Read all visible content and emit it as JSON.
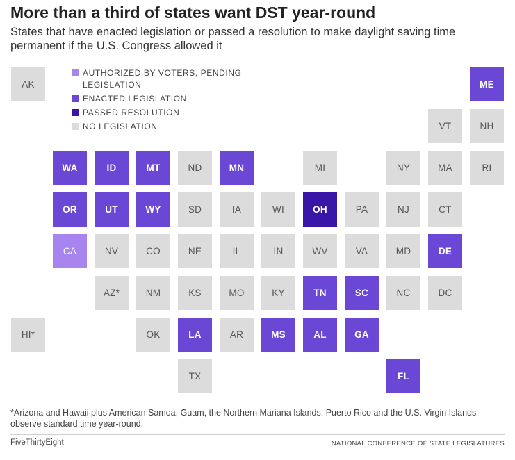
{
  "header": {
    "title": "More than a third of states want DST year-round",
    "subtitle": "States that have enacted legislation or passed a resolution to make daylight saving time permanent if the U.S. Congress allowed it"
  },
  "legend": [
    {
      "key": "voters",
      "label": "AUTHORIZED BY VOTERS, PENDING LEGISLATION",
      "color": "#a885ee"
    },
    {
      "key": "enacted",
      "label": "ENACTED LEGISLATION",
      "color": "#6b47d6"
    },
    {
      "key": "resolution",
      "label": "PASSED RESOLUTION",
      "color": "#3a16a8"
    },
    {
      "key": "none",
      "label": "NO LEGISLATION",
      "color": "#dcdcdc"
    }
  ],
  "states": [
    {
      "label": "AK",
      "status": "none",
      "row": 0,
      "col": 0
    },
    {
      "label": "ME",
      "status": "enacted",
      "row": 0,
      "col": 11
    },
    {
      "label": "VT",
      "status": "none",
      "row": 1,
      "col": 10
    },
    {
      "label": "NH",
      "status": "none",
      "row": 1,
      "col": 11
    },
    {
      "label": "WA",
      "status": "enacted",
      "row": 2,
      "col": 1
    },
    {
      "label": "ID",
      "status": "enacted",
      "row": 2,
      "col": 2
    },
    {
      "label": "MT",
      "status": "enacted",
      "row": 2,
      "col": 3
    },
    {
      "label": "ND",
      "status": "none",
      "row": 2,
      "col": 4
    },
    {
      "label": "MN",
      "status": "enacted",
      "row": 2,
      "col": 5
    },
    {
      "label": "MI",
      "status": "none",
      "row": 2,
      "col": 7
    },
    {
      "label": "NY",
      "status": "none",
      "row": 2,
      "col": 9
    },
    {
      "label": "MA",
      "status": "none",
      "row": 2,
      "col": 10
    },
    {
      "label": "RI",
      "status": "none",
      "row": 2,
      "col": 11
    },
    {
      "label": "OR",
      "status": "enacted",
      "row": 3,
      "col": 1
    },
    {
      "label": "UT",
      "status": "enacted",
      "row": 3,
      "col": 2
    },
    {
      "label": "WY",
      "status": "enacted",
      "row": 3,
      "col": 3
    },
    {
      "label": "SD",
      "status": "none",
      "row": 3,
      "col": 4
    },
    {
      "label": "IA",
      "status": "none",
      "row": 3,
      "col": 5
    },
    {
      "label": "WI",
      "status": "none",
      "row": 3,
      "col": 6
    },
    {
      "label": "OH",
      "status": "resolution",
      "row": 3,
      "col": 7
    },
    {
      "label": "PA",
      "status": "none",
      "row": 3,
      "col": 8
    },
    {
      "label": "NJ",
      "status": "none",
      "row": 3,
      "col": 9
    },
    {
      "label": "CT",
      "status": "none",
      "row": 3,
      "col": 10
    },
    {
      "label": "CA",
      "status": "voters",
      "row": 4,
      "col": 1
    },
    {
      "label": "NV",
      "status": "none",
      "row": 4,
      "col": 2
    },
    {
      "label": "CO",
      "status": "none",
      "row": 4,
      "col": 3
    },
    {
      "label": "NE",
      "status": "none",
      "row": 4,
      "col": 4
    },
    {
      "label": "IL",
      "status": "none",
      "row": 4,
      "col": 5
    },
    {
      "label": "IN",
      "status": "none",
      "row": 4,
      "col": 6
    },
    {
      "label": "WV",
      "status": "none",
      "row": 4,
      "col": 7
    },
    {
      "label": "VA",
      "status": "none",
      "row": 4,
      "col": 8
    },
    {
      "label": "MD",
      "status": "none",
      "row": 4,
      "col": 9
    },
    {
      "label": "DE",
      "status": "enacted",
      "row": 4,
      "col": 10
    },
    {
      "label": "AZ*",
      "status": "none",
      "row": 5,
      "col": 2
    },
    {
      "label": "NM",
      "status": "none",
      "row": 5,
      "col": 3
    },
    {
      "label": "KS",
      "status": "none",
      "row": 5,
      "col": 4
    },
    {
      "label": "MO",
      "status": "none",
      "row": 5,
      "col": 5
    },
    {
      "label": "KY",
      "status": "none",
      "row": 5,
      "col": 6
    },
    {
      "label": "TN",
      "status": "enacted",
      "row": 5,
      "col": 7
    },
    {
      "label": "SC",
      "status": "enacted",
      "row": 5,
      "col": 8
    },
    {
      "label": "NC",
      "status": "none",
      "row": 5,
      "col": 9
    },
    {
      "label": "DC",
      "status": "none",
      "row": 5,
      "col": 10
    },
    {
      "label": "HI*",
      "status": "none",
      "row": 6,
      "col": 0
    },
    {
      "label": "OK",
      "status": "none",
      "row": 6,
      "col": 3
    },
    {
      "label": "LA",
      "status": "enacted",
      "row": 6,
      "col": 4
    },
    {
      "label": "AR",
      "status": "none",
      "row": 6,
      "col": 5
    },
    {
      "label": "MS",
      "status": "enacted",
      "row": 6,
      "col": 6
    },
    {
      "label": "AL",
      "status": "enacted",
      "row": 6,
      "col": 7
    },
    {
      "label": "GA",
      "status": "enacted",
      "row": 6,
      "col": 8
    },
    {
      "label": "TX",
      "status": "none",
      "row": 7,
      "col": 4
    },
    {
      "label": "FL",
      "status": "enacted",
      "row": 7,
      "col": 9
    }
  ],
  "footnote": "*Arizona and Hawaii plus American Samoa, Guam, the Northern Mariana Islands, Puerto Rico and the U.S. Virgin Islands observe standard time year-round.",
  "footer": {
    "brand": "FiveThirtyEight",
    "source": "NATIONAL CONFERENCE OF STATE LEGISLATURES"
  }
}
